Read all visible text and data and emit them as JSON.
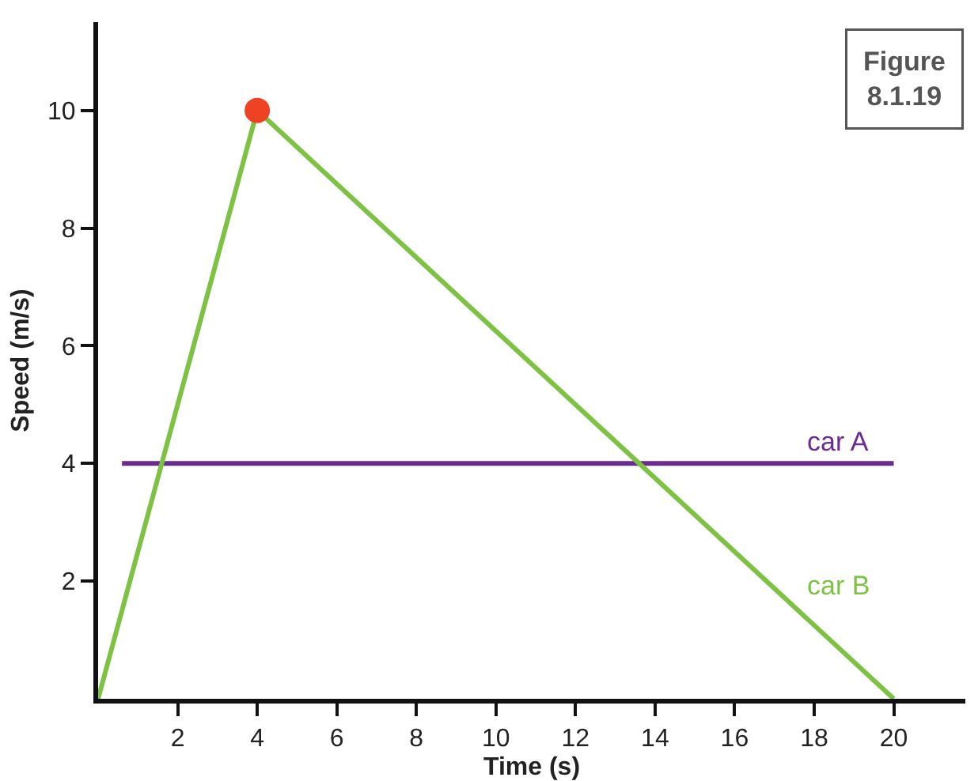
{
  "chart_data": {
    "type": "line",
    "xlabel": "Time (s)",
    "ylabel": "Speed (m/s)",
    "xlim": [
      0,
      21.8
    ],
    "ylim": [
      0,
      11.5
    ],
    "xticks": [
      2,
      4,
      6,
      8,
      10,
      12,
      14,
      16,
      18,
      20
    ],
    "yticks": [
      2,
      4,
      6,
      8,
      10
    ],
    "grid": false,
    "legend": false,
    "line_style": "solid",
    "series": [
      {
        "name": "car A",
        "color": "#6a2c91",
        "x": [
          0.6,
          20
        ],
        "values": [
          4,
          4
        ]
      },
      {
        "name": "car B",
        "color": "#7dc242",
        "x": [
          0,
          4,
          20
        ],
        "values": [
          0,
          10,
          0
        ]
      },
      {
        "type": "scatter",
        "marker": "circle",
        "color": "#ef4123",
        "x": [
          4
        ],
        "values": [
          10
        ]
      }
    ],
    "annotations": [
      "Figure\n8.1.19"
    ]
  }
}
